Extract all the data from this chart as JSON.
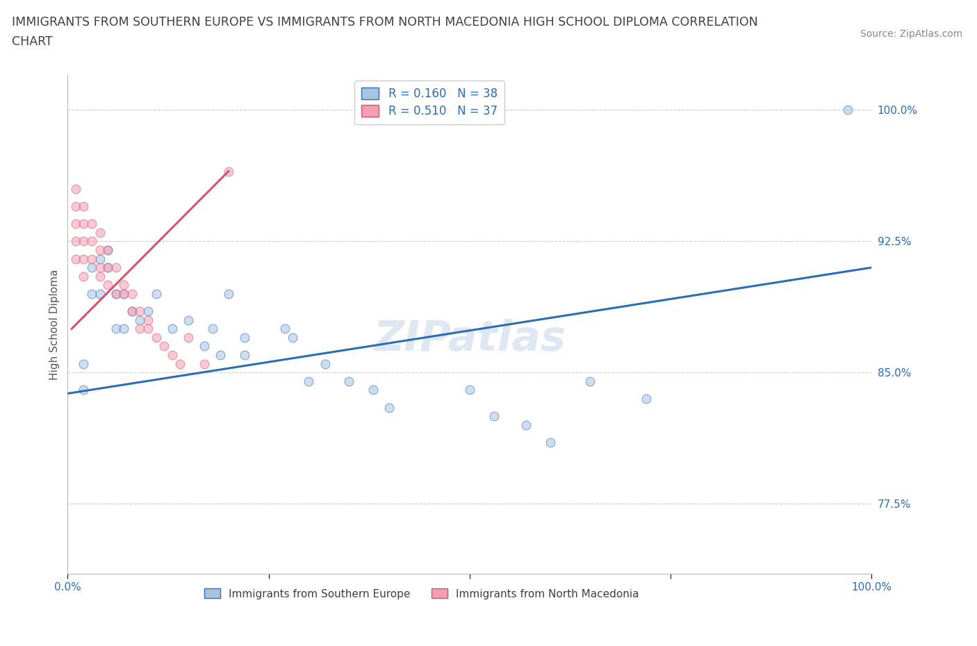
{
  "title_line1": "IMMIGRANTS FROM SOUTHERN EUROPE VS IMMIGRANTS FROM NORTH MACEDONIA HIGH SCHOOL DIPLOMA CORRELATION",
  "title_line2": "CHART",
  "source": "Source: ZipAtlas.com",
  "xlabel": "",
  "ylabel": "High School Diploma",
  "xlim": [
    0,
    1.0
  ],
  "ylim": [
    0.735,
    1.02
  ],
  "xticks": [
    0.0,
    0.25,
    0.5,
    0.75,
    1.0
  ],
  "xtick_labels": [
    "0.0%",
    "",
    "",
    "",
    "100.0%"
  ],
  "ytick_labels": [
    "77.5%",
    "85.0%",
    "92.5%",
    "100.0%"
  ],
  "yticks": [
    0.775,
    0.85,
    0.925,
    1.0
  ],
  "legend_entries": [
    {
      "label": "R = 0.160   N = 38",
      "color": "#a8c4e0"
    },
    {
      "label": "R = 0.510   N = 37",
      "color": "#f4a0b0"
    }
  ],
  "legend_series": [
    {
      "label": "Immigrants from Southern Europe",
      "color": "#a8c4e0"
    },
    {
      "label": "Immigrants from North Macedonia",
      "color": "#f4a0b0"
    }
  ],
  "blue_scatter_x": [
    0.02,
    0.02,
    0.03,
    0.03,
    0.04,
    0.04,
    0.05,
    0.05,
    0.06,
    0.06,
    0.07,
    0.07,
    0.08,
    0.09,
    0.1,
    0.11,
    0.13,
    0.15,
    0.17,
    0.18,
    0.19,
    0.2,
    0.22,
    0.22,
    0.27,
    0.28,
    0.3,
    0.32,
    0.35,
    0.38,
    0.4,
    0.5,
    0.53,
    0.57,
    0.6,
    0.65,
    0.72,
    0.97
  ],
  "blue_scatter_y": [
    0.855,
    0.84,
    0.91,
    0.895,
    0.915,
    0.895,
    0.92,
    0.91,
    0.895,
    0.875,
    0.895,
    0.875,
    0.885,
    0.88,
    0.885,
    0.895,
    0.875,
    0.88,
    0.865,
    0.875,
    0.86,
    0.895,
    0.87,
    0.86,
    0.875,
    0.87,
    0.845,
    0.855,
    0.845,
    0.84,
    0.83,
    0.84,
    0.825,
    0.82,
    0.81,
    0.845,
    0.835,
    1.0
  ],
  "pink_scatter_x": [
    0.01,
    0.01,
    0.01,
    0.01,
    0.01,
    0.02,
    0.02,
    0.02,
    0.02,
    0.02,
    0.03,
    0.03,
    0.03,
    0.04,
    0.04,
    0.04,
    0.04,
    0.05,
    0.05,
    0.05,
    0.06,
    0.06,
    0.07,
    0.07,
    0.08,
    0.08,
    0.09,
    0.09,
    0.1,
    0.1,
    0.11,
    0.12,
    0.13,
    0.14,
    0.15,
    0.17,
    0.2
  ],
  "pink_scatter_y": [
    0.955,
    0.945,
    0.935,
    0.925,
    0.915,
    0.945,
    0.935,
    0.925,
    0.915,
    0.905,
    0.935,
    0.925,
    0.915,
    0.93,
    0.92,
    0.91,
    0.905,
    0.92,
    0.91,
    0.9,
    0.91,
    0.895,
    0.9,
    0.895,
    0.895,
    0.885,
    0.885,
    0.875,
    0.88,
    0.875,
    0.87,
    0.865,
    0.86,
    0.855,
    0.87,
    0.855,
    0.965
  ],
  "blue_line_color": "#2a6db5",
  "pink_line_color": "#d94f70",
  "scatter_size": 85,
  "scatter_alpha": 0.55,
  "grid_color": "#cccccc",
  "grid_style": "--",
  "watermark": "ZIPatlas",
  "title_color": "#404040",
  "title_fontsize": 12.5,
  "source_fontsize": 10,
  "axis_label_color": "#555555",
  "tick_label_color": "#2a6db5",
  "blue_trend_x": [
    0.0,
    1.0
  ],
  "blue_trend_y": [
    0.838,
    0.91
  ],
  "pink_trend_x": [
    0.005,
    0.2
  ],
  "pink_trend_y": [
    0.875,
    0.965
  ]
}
